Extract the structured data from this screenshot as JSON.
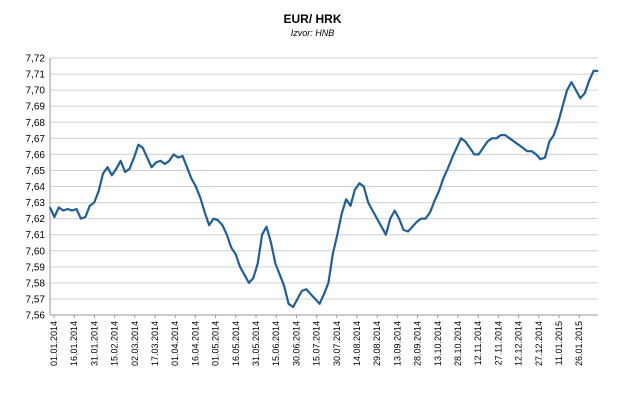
{
  "chart_data": {
    "type": "line",
    "title": "EUR/ HRK",
    "subtitle": "Izvor: HNB",
    "xlabel": "",
    "ylabel": "",
    "ylim": [
      7.56,
      7.72
    ],
    "grid": true,
    "legend": "none",
    "line_color": "#1f5f99",
    "y_ticks": [
      "7,56",
      "7,57",
      "7,58",
      "7,59",
      "7,60",
      "7,61",
      "7,62",
      "7,63",
      "7,64",
      "7,65",
      "7,66",
      "7,67",
      "7,68",
      "7,69",
      "7,70",
      "7,71",
      "7,72"
    ],
    "x_ticks": [
      "01.01.2014",
      "16.01.2014",
      "31.01.2014",
      "15.02.2014",
      "02.03.2014",
      "17.03.2014",
      "01.04.2014",
      "16.04.2014",
      "01.05.2014",
      "16.05.2014",
      "31.05.2014",
      "15.06.2014",
      "30.06.2014",
      "15.07.2014",
      "30.07.2014",
      "14.08.2014",
      "29.08.2014",
      "13.09.2014",
      "28.09.2014",
      "13.10.2014",
      "28.10.2014",
      "12.11.2014",
      "27.11.2014",
      "12.12.2014",
      "27.12.2014",
      "11.01.2015",
      "26.01.2015"
    ],
    "series": [
      {
        "values": [
          7.627,
          7.621,
          7.627,
          7.625,
          7.626,
          7.625,
          7.626,
          7.62,
          7.621,
          7.628,
          7.63,
          7.637,
          7.648,
          7.652,
          7.647,
          7.651,
          7.656,
          7.649,
          7.651,
          7.658,
          7.666,
          7.664,
          7.658,
          7.652,
          7.655,
          7.656,
          7.654,
          7.656,
          7.66,
          7.658,
          7.659,
          7.652,
          7.645,
          7.64,
          7.633,
          7.624,
          7.616,
          7.62,
          7.619,
          7.616,
          7.61,
          7.602,
          7.598,
          7.59,
          7.585,
          7.58,
          7.583,
          7.592,
          7.61,
          7.615,
          7.605,
          7.592,
          7.585,
          7.578,
          7.567,
          7.565,
          7.57,
          7.575,
          7.576,
          7.573,
          7.57,
          7.567,
          7.573,
          7.58,
          7.598,
          7.61,
          7.623,
          7.632,
          7.628,
          7.638,
          7.642,
          7.64,
          7.63,
          7.625,
          7.62,
          7.615,
          7.61,
          7.62,
          7.625,
          7.62,
          7.613,
          7.612,
          7.615,
          7.618,
          7.62,
          7.62,
          7.624,
          7.631,
          7.637,
          7.645,
          7.651,
          7.658,
          7.664,
          7.67,
          7.668,
          7.664,
          7.66,
          7.66,
          7.664,
          7.668,
          7.67,
          7.67,
          7.672,
          7.672,
          7.67,
          7.668,
          7.666,
          7.664,
          7.662,
          7.662,
          7.66,
          7.657,
          7.658,
          7.668,
          7.672,
          7.68,
          7.69,
          7.7,
          7.705,
          7.7,
          7.695,
          7.698,
          7.706,
          7.712,
          7.712
        ]
      }
    ]
  }
}
